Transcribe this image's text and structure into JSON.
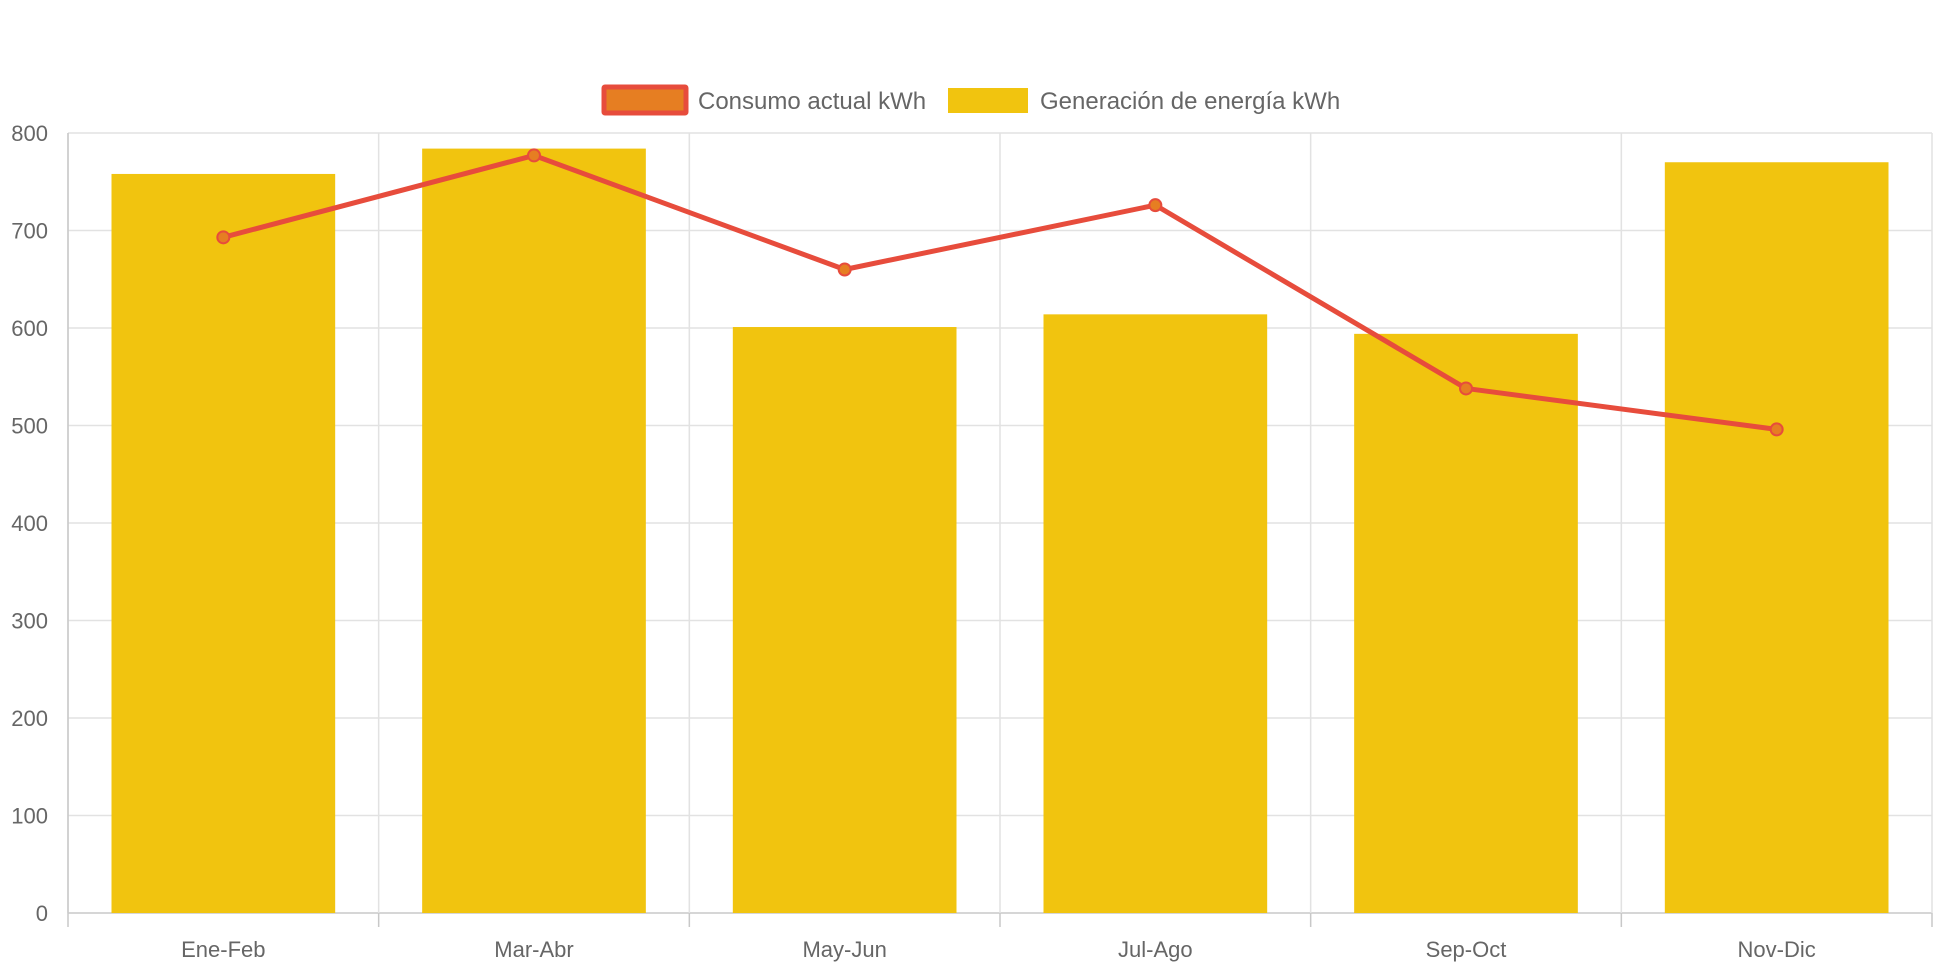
{
  "chart_data": {
    "type": "bar",
    "categories": [
      "Ene-Feb",
      "Mar-Abr",
      "May-Jun",
      "Jul-Ago",
      "Sep-Oct",
      "Nov-Dic"
    ],
    "ylim": [
      0,
      800
    ],
    "yticks": [
      0,
      100,
      200,
      300,
      400,
      500,
      600,
      700,
      800
    ],
    "grid": true,
    "legend_position": "top",
    "series": [
      {
        "name": "Consumo actual kWh",
        "type": "line",
        "values": [
          693,
          777,
          660,
          726,
          538,
          496
        ],
        "color": "#e74c3c",
        "point_fill": "#e67e22"
      },
      {
        "name": "Generación de energía kWh",
        "type": "bar",
        "values": [
          758,
          784,
          601,
          614,
          594,
          770
        ],
        "color": "#f1c40f"
      }
    ],
    "title": "",
    "xlabel": "",
    "ylabel": ""
  }
}
